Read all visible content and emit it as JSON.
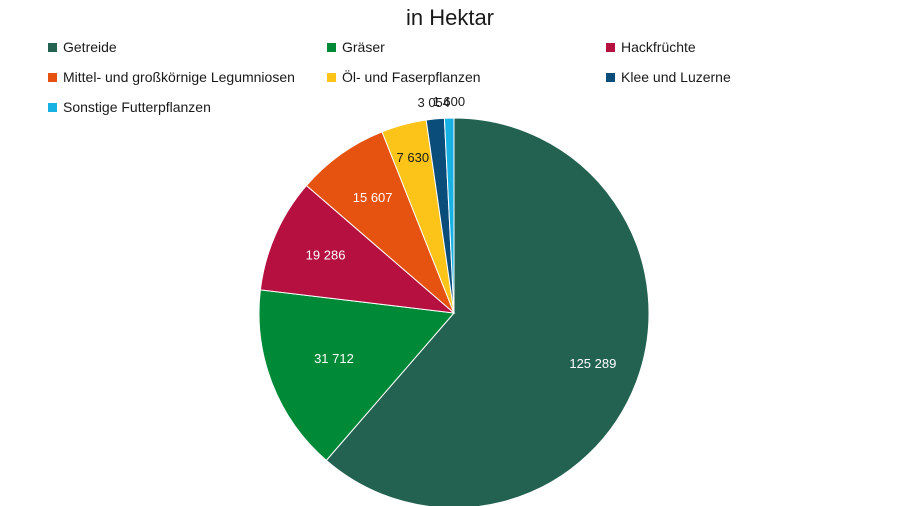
{
  "chart_data": {
    "type": "pie",
    "title": "in Hektar",
    "legend_position": "top",
    "categories": [
      "Getreide",
      "Gräser",
      "Hackfrüchte",
      "Mittel- und großkörnige Legumniosen",
      "Öl- und Faserpflanzen",
      "Klee und Luzerne",
      "Sonstige Futterpflanzen"
    ],
    "values": [
      125289,
      31712,
      19286,
      15607,
      7630,
      3054,
      1600
    ],
    "value_labels": [
      "125 289",
      "31 712",
      "19 286",
      "15 607",
      "7 630",
      "3 054",
      "1 600"
    ],
    "colors": [
      "#236150",
      "#008a37",
      "#b5103f",
      "#e6520f",
      "#fcc419",
      "#0a4d7b",
      "#17b2e3"
    ],
    "label_colors": [
      "#ffffff",
      "#ffffff",
      "#ffffff",
      "#ffffff",
      "#1a1a1a",
      "#1a1a1a",
      "#1a1a1a"
    ]
  }
}
